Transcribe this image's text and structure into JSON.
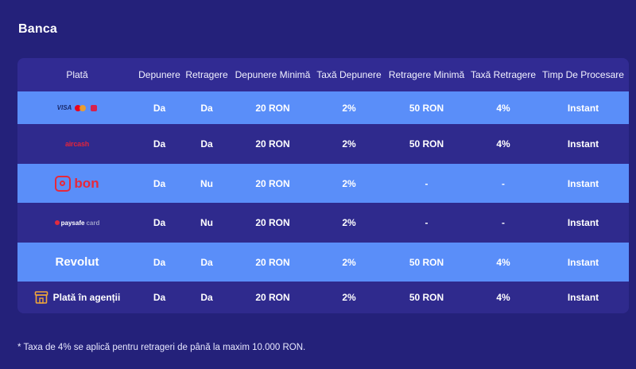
{
  "section": {
    "title": "Banca"
  },
  "table": {
    "headers": [
      "Plată",
      "Depunere",
      "Retragere",
      "Depunere Minimă",
      "Taxă Depunere",
      "Retragere Minimă",
      "Taxă Retragere",
      "Timp De Procesare"
    ],
    "rows": [
      {
        "method": "Visa / Mastercard / Bonus",
        "method_icon": "visa-mastercard-logo",
        "logo": {
          "a": "VISA"
        },
        "depunere": "Da",
        "retragere": "Da",
        "depunere_minima": "20 RON",
        "taxa_depunere": "2%",
        "retragere_minima": "50 RON",
        "taxa_retragere": "4%",
        "timp": "Instant"
      },
      {
        "method": "Aircash",
        "method_icon": "aircash-logo",
        "logo": {
          "a": "aircash"
        },
        "depunere": "Da",
        "retragere": "Da",
        "depunere_minima": "20 RON",
        "taxa_depunere": "2%",
        "retragere_minima": "50 RON",
        "taxa_retragere": "4%",
        "timp": "Instant"
      },
      {
        "method": "bon",
        "method_icon": "bon-logo",
        "logo": {
          "a": "bon"
        },
        "depunere": "Da",
        "retragere": "Nu",
        "depunere_minima": "20 RON",
        "taxa_depunere": "2%",
        "retragere_minima": "-",
        "taxa_retragere": "-",
        "timp": "Instant"
      },
      {
        "method": "Paysafecard",
        "method_icon": "paysafecard-logo",
        "logo": {
          "a": "paysafe",
          "b": "card"
        },
        "depunere": "Da",
        "retragere": "Nu",
        "depunere_minima": "20 RON",
        "taxa_depunere": "2%",
        "retragere_minima": "-",
        "taxa_retragere": "-",
        "timp": "Instant"
      },
      {
        "method": "Revolut",
        "method_icon": "revolut-logo",
        "logo": {
          "a": "Revolut"
        },
        "depunere": "Da",
        "retragere": "Da",
        "depunere_minima": "20 RON",
        "taxa_depunere": "2%",
        "retragere_minima": "50 RON",
        "taxa_retragere": "4%",
        "timp": "Instant"
      },
      {
        "method": "Plată în agenții",
        "method_icon": "shop-icon",
        "depunere": "Da",
        "retragere": "Da",
        "depunere_minima": "20 RON",
        "taxa_depunere": "2%",
        "retragere_minima": "50 RON",
        "taxa_retragere": "4%",
        "timp": "Instant"
      }
    ]
  },
  "footnote": "* Taxa de 4% se aplică pentru retrageri de până la maxim 10.000 RON.",
  "colors": {
    "background": "#24217a",
    "table_bg": "#312b93",
    "row_light": "#5a8ef9",
    "row_dark": "#2f2a8d",
    "brand_red": "#e7283a"
  }
}
